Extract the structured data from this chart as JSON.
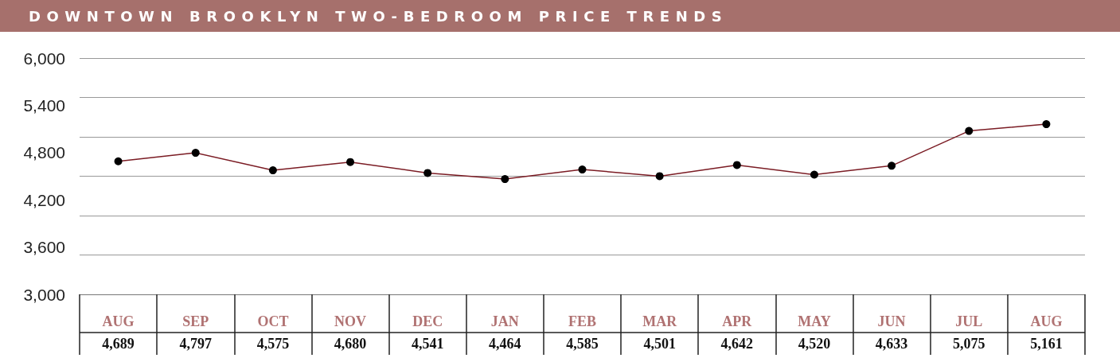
{
  "chart_data": {
    "type": "line",
    "title": "DOWNTOWN BROOKLYN TWO-BEDROOM PRICE TRENDS",
    "categories": [
      "AUG",
      "SEP",
      "OCT",
      "NOV",
      "DEC",
      "JAN",
      "FEB",
      "MAR",
      "APR",
      "MAY",
      "JUN",
      "JUL",
      "AUG"
    ],
    "series": [
      {
        "color": "#7b1c24",
        "values": [
          4689,
          4797,
          4575,
          4680,
          4541,
          4464,
          4585,
          4501,
          4642,
          4520,
          4633,
          5075,
          5161
        ],
        "value_labels": [
          "4,689",
          "4,797",
          "4,575",
          "4,680",
          "4,541",
          "4,464",
          "4,585",
          "4,501",
          "4,642",
          "4,520",
          "4,633",
          "5,075",
          "5,161"
        ]
      }
    ],
    "ylim": [
      3000,
      6000
    ],
    "yticks": [
      {
        "value": 3000,
        "label": "3,000"
      },
      {
        "value": 3600,
        "label": "3,600"
      },
      {
        "value": 4200,
        "label": "4,200"
      },
      {
        "value": 4800,
        "label": "4,800"
      },
      {
        "value": 5400,
        "label": "5,400"
      },
      {
        "value": 6000,
        "label": "6,000"
      }
    ],
    "grid": "y",
    "marker": "circle",
    "line_style": "solid"
  }
}
